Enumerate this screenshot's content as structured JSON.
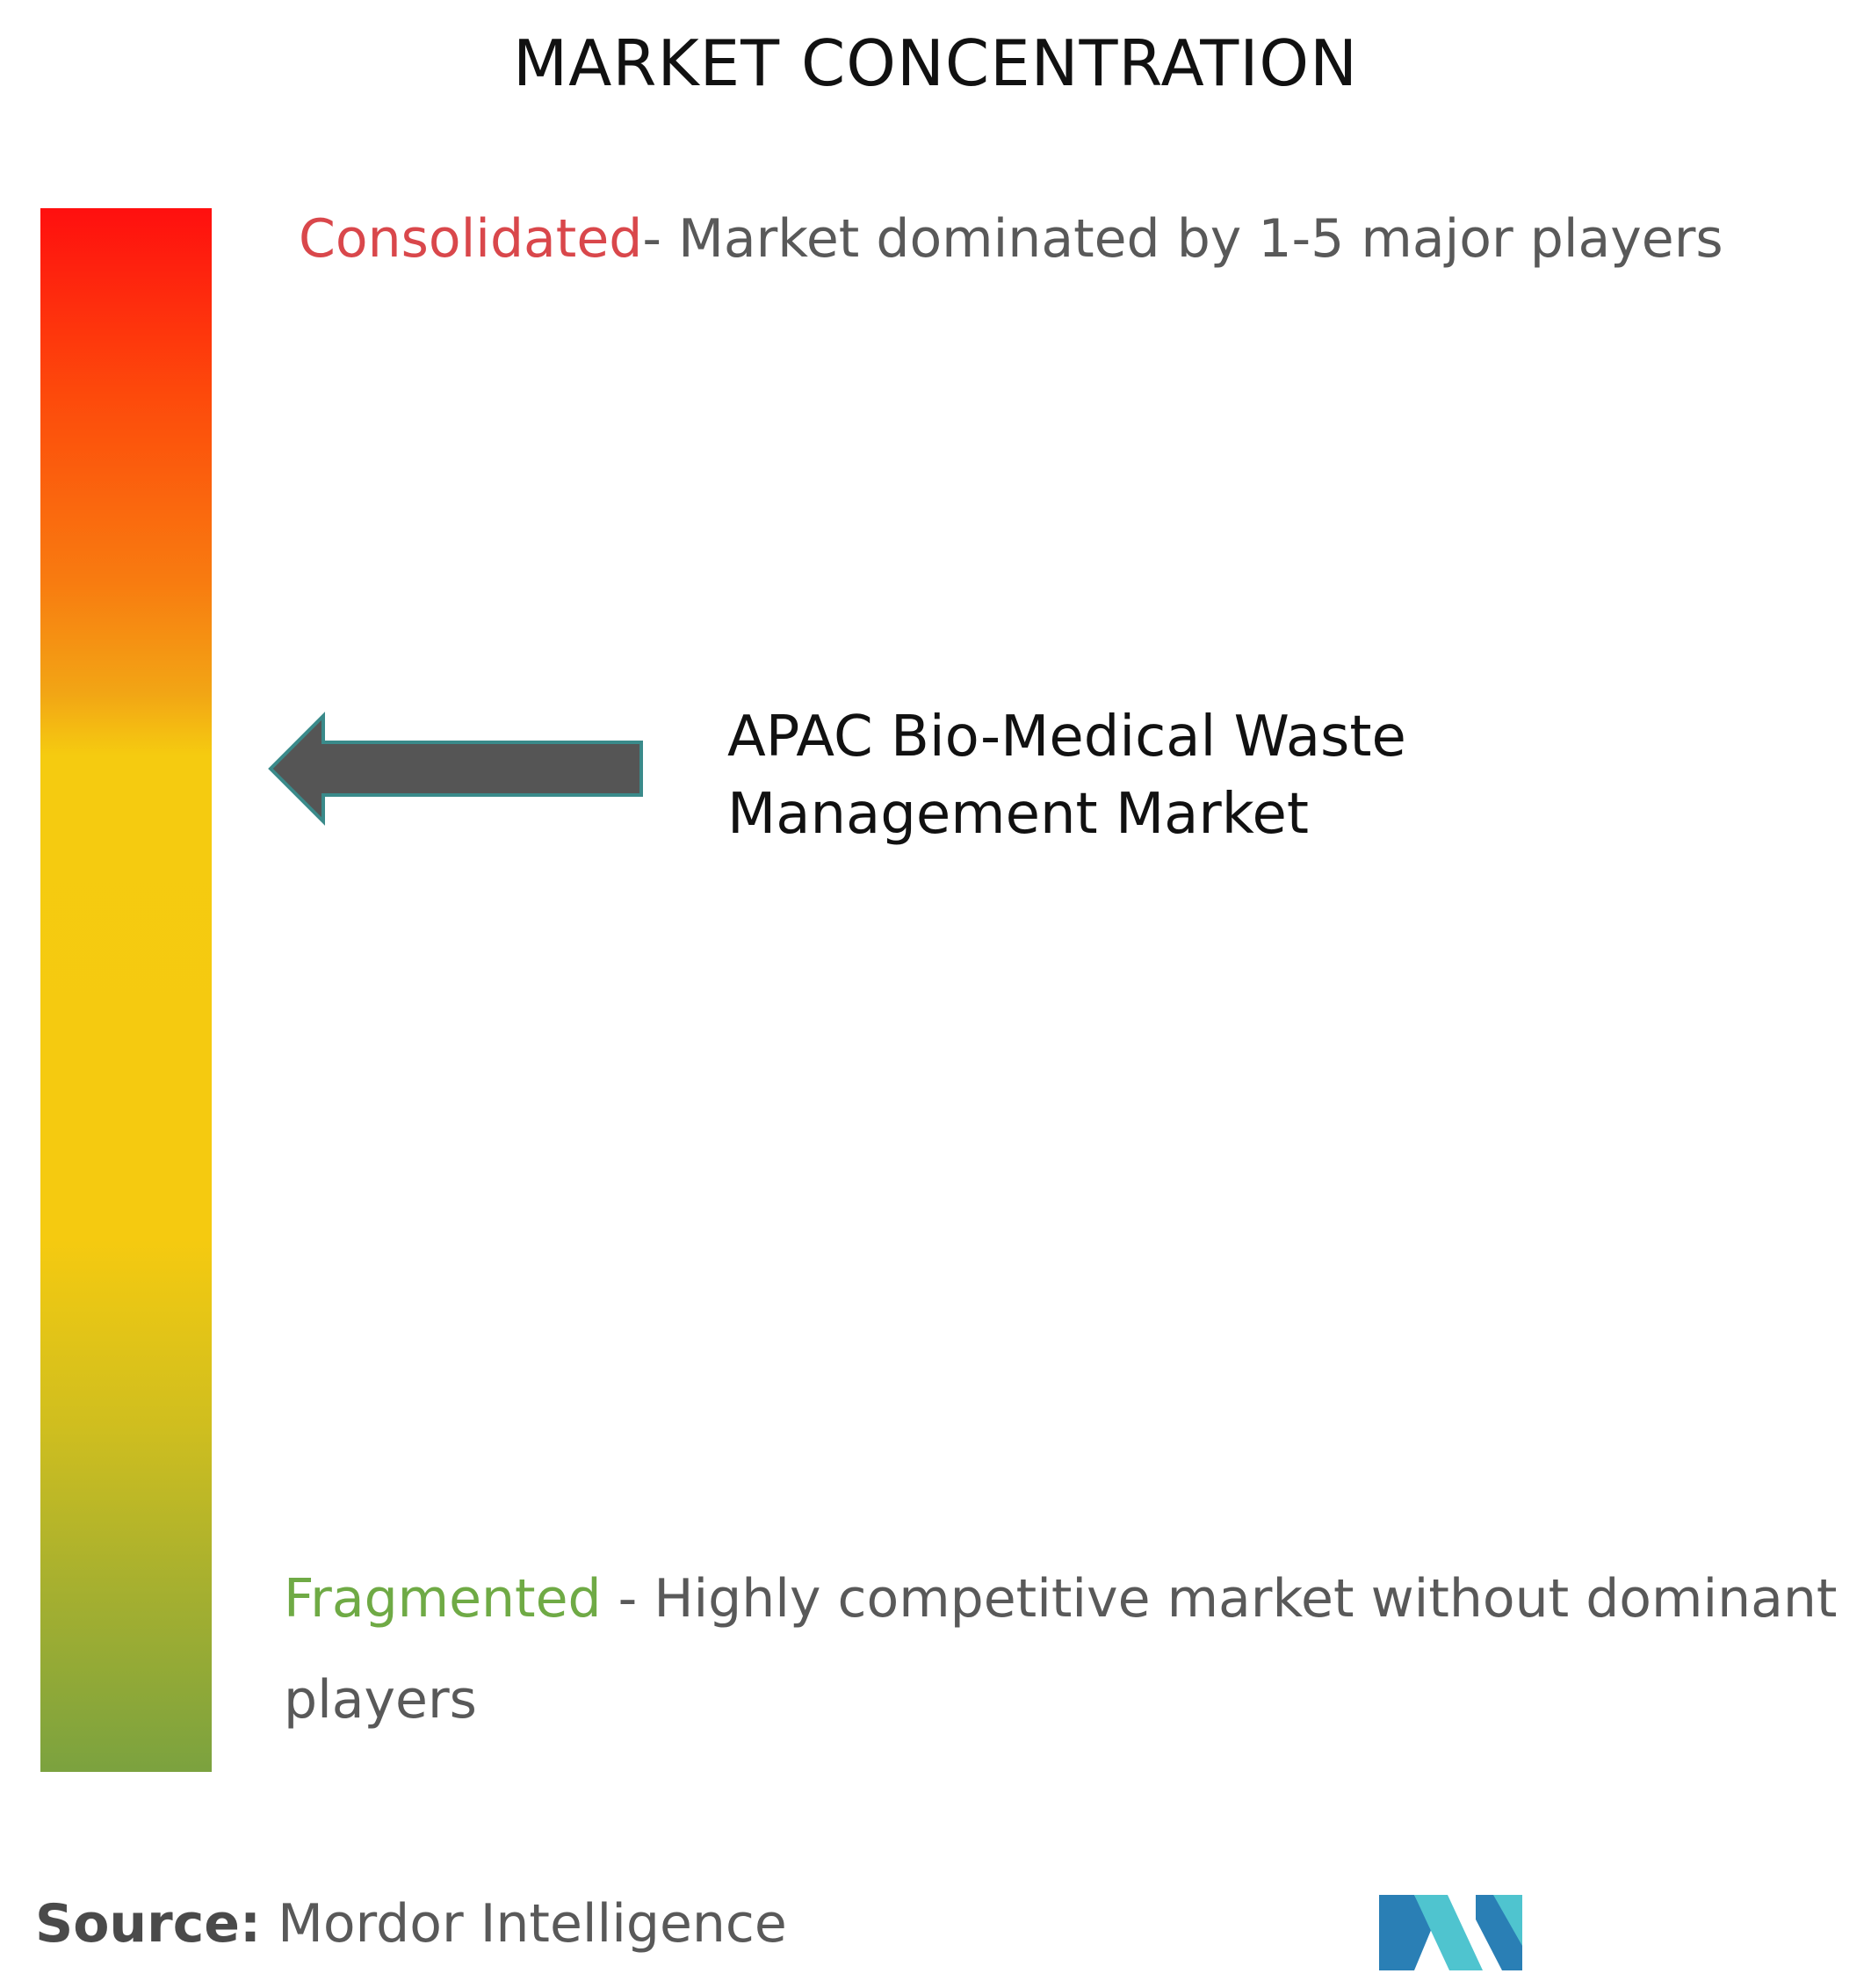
{
  "title": "MARKET CONCENTRATION",
  "scale": {
    "top_label": "Consolidated",
    "top_separator": "- ",
    "top_description": "Market dominated by 1-5 major players",
    "bottom_label": "Fragmented",
    "bottom_separator": " - ",
    "bottom_description_line1": "Highly competitive market without dominant",
    "bottom_description_line2": "players",
    "top_color": "#ff0f0f",
    "middle_color": "#f5cb10",
    "bottom_color": "#7ba23f"
  },
  "indicator": {
    "market_name_line1": "APAC Bio-Medical Waste",
    "market_name_line2": "Management Market",
    "arrow_color": "#555555",
    "arrow_outline_color": "#3a8a8a"
  },
  "footer": {
    "source_label": "Source:",
    "source_value": " Mordor Intelligence",
    "logo_colors": [
      "#2a7fb5",
      "#4fc4cf"
    ]
  }
}
